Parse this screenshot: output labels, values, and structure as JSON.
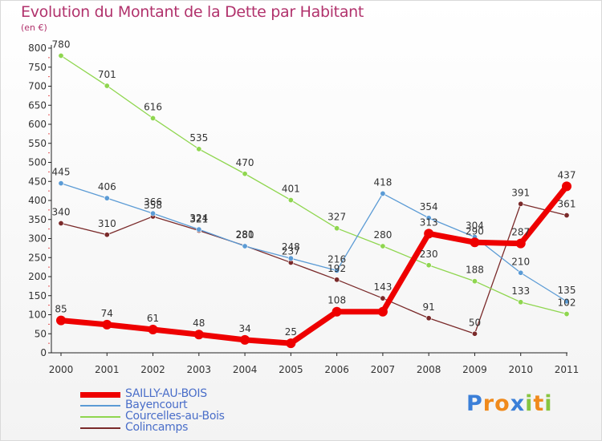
{
  "chart_data": {
    "type": "line",
    "title": "Evolution du Montant de la Dette par Habitant",
    "ylabel": "(en €)",
    "xlabel": "",
    "ylim": [
      0,
      800
    ],
    "yticks": [
      0,
      50,
      100,
      150,
      200,
      250,
      300,
      350,
      400,
      450,
      500,
      550,
      600,
      650,
      700,
      750,
      800
    ],
    "x": [
      "2000",
      "2001",
      "2002",
      "2003",
      "2004",
      "2005",
      "2006",
      "2007",
      "2008",
      "2009",
      "2010",
      "2011"
    ],
    "series": [
      {
        "name": "SAILLY-AU-BOIS",
        "color": "#ee0000",
        "values": [
          85,
          74,
          61,
          48,
          34,
          25,
          108,
          108,
          313,
          290,
          287,
          437
        ]
      },
      {
        "name": "Bayencourt",
        "color": "#5b9bd5",
        "values": [
          445,
          406,
          366,
          324,
          280,
          248,
          216,
          418,
          354,
          304,
          210,
          135
        ]
      },
      {
        "name": "Courcelles-au-Bois",
        "color": "#8fd64f",
        "values": [
          780,
          701,
          616,
          535,
          470,
          401,
          327,
          280,
          230,
          188,
          133,
          102
        ]
      },
      {
        "name": "Colincamps",
        "color": "#7a2a2a",
        "values": [
          340,
          310,
          358,
          321,
          281,
          237,
          192,
          143,
          91,
          50,
          391,
          361
        ]
      }
    ],
    "data_labels": [
      {
        "series": 0,
        "labels": [
          "85",
          "74",
          "61",
          "48",
          "34",
          "25",
          "108",
          "",
          "313",
          "290",
          "287",
          "437"
        ]
      },
      {
        "series": 1,
        "labels": [
          "445",
          "406",
          "366",
          "324",
          "280",
          "248",
          "216",
          "418",
          "354",
          "304",
          "210",
          "135"
        ]
      },
      {
        "series": 2,
        "labels": [
          "780",
          "701",
          "616",
          "535",
          "470",
          "401",
          "327",
          "280",
          "230",
          "188",
          "133",
          "102"
        ]
      },
      {
        "series": 3,
        "labels": [
          "340",
          "310",
          "358",
          "321",
          "281",
          "237",
          "192",
          "143",
          "91",
          "50",
          "391",
          "361"
        ]
      }
    ],
    "grid": false,
    "legend_position": "bottom-left"
  },
  "branding": {
    "logo_letters": [
      "P",
      "r",
      "o",
      "x",
      "i",
      "t",
      "i"
    ],
    "logo_colors": [
      "#3b7fd8",
      "#f08a1c",
      "#f08a1c",
      "#3b7fd8",
      "#88c540",
      "#f08a1c",
      "#88c540"
    ]
  }
}
